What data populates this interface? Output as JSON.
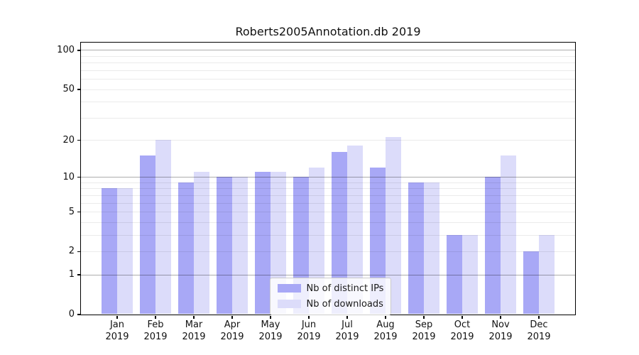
{
  "title": "Roberts2005Annotation.db 2019",
  "chart_data": {
    "type": "bar",
    "title": "Roberts2005Annotation.db 2019",
    "categories": [
      "Jan",
      "Feb",
      "Mar",
      "Apr",
      "May",
      "Jun",
      "Jul",
      "Aug",
      "Sep",
      "Oct",
      "Nov",
      "Dec"
    ],
    "category_year": "2019",
    "series": [
      {
        "name": "Nb of distinct IPs",
        "color": "#a8a8f6",
        "values": [
          8,
          15,
          9,
          10,
          11,
          10,
          16,
          12,
          9,
          3,
          10,
          2
        ]
      },
      {
        "name": "Nb of downloads",
        "color": "#dcdcfa",
        "values": [
          8,
          20,
          11,
          10,
          11,
          12,
          18,
          21,
          9,
          3,
          15,
          3
        ]
      }
    ],
    "yscale": "log10(1+v)",
    "ylim": [
      0,
      110
    ],
    "yticks": [
      100,
      50,
      20,
      10,
      5,
      2,
      1,
      0
    ],
    "major_gridlines": [
      1,
      10,
      100
    ],
    "minor_gridlines": [
      2,
      3,
      4,
      5,
      6,
      7,
      8,
      9,
      20,
      30,
      40,
      50,
      60,
      70,
      80,
      90
    ],
    "grid": true,
    "legend_position": "lower center",
    "xlabel": "",
    "ylabel": ""
  },
  "colors": {
    "bar_dark": "#a8a8f6",
    "bar_light": "#dcdcfa",
    "major_grid": "rgba(0,0,0,0.32)",
    "minor_grid": "rgba(0,0,0,0.08)",
    "spine": "#000000",
    "legend_border": "#cccccc"
  }
}
